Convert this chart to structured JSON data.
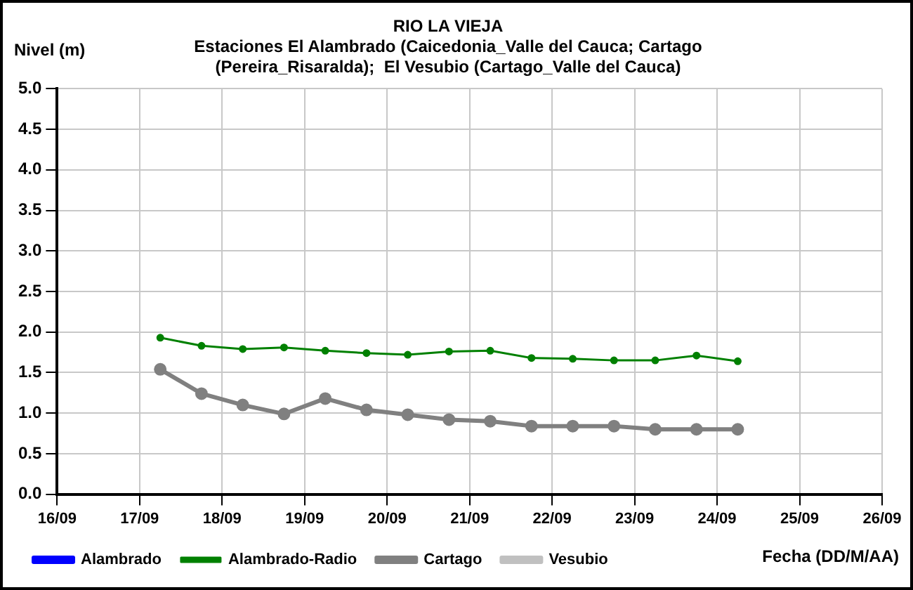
{
  "chart_data": {
    "type": "line",
    "title": "RIO LA VIEJA",
    "subtitle": "Estaciones El Alambrado (Caicedonia_Valle del Cauca; Cartago (Pereira_Risaralda);  El Vesubio (Cartago_Valle del Cauca)",
    "xlabel": "Fecha (DD/M/AA)",
    "ylabel": "Nivel (m)",
    "x": [
      "--09-17T06:00",
      "--09-17T18:00",
      "--09-18T06:00",
      "--09-18T18:00",
      "--09-19T06:00",
      "--09-19T18:00",
      "--09-20T06:00",
      "--09-20T18:00",
      "--09-21T06:00",
      "--09-21T18:00",
      "--09-22T06:00",
      "--09-22T18:00",
      "--09-23T06:00",
      "--09-23T18:00",
      "--09-24T06:00"
    ],
    "series": [
      {
        "name": "Alambrado",
        "color": "#0000ff",
        "marker": "none",
        "values": [
          null,
          null,
          null,
          null,
          null,
          null,
          null,
          null,
          null,
          null,
          null,
          null,
          null,
          null,
          null
        ]
      },
      {
        "name": "Alambrado-Radio",
        "color": "#008000",
        "marker": "circle",
        "values": [
          1.93,
          1.83,
          1.79,
          1.81,
          1.77,
          1.74,
          1.72,
          1.76,
          1.77,
          1.68,
          1.67,
          1.65,
          1.65,
          1.71,
          1.64
        ]
      },
      {
        "name": "Cartago",
        "color": "#808080",
        "marker": "circle",
        "values": [
          1.54,
          1.24,
          1.1,
          0.99,
          1.18,
          1.04,
          0.98,
          0.92,
          0.9,
          0.84,
          0.84,
          0.84,
          0.8,
          0.8,
          0.8
        ]
      },
      {
        "name": "Vesubio",
        "color": "#c0c0c0",
        "marker": "circle",
        "values": [
          null,
          null,
          null,
          null,
          null,
          null,
          null,
          null,
          null,
          null,
          null,
          null,
          null,
          null,
          null
        ]
      }
    ],
    "xlim": [
      "--09-16",
      "--09-26"
    ],
    "xticks": [
      {
        "value": "--09-16",
        "label": "16/09"
      },
      {
        "value": "--09-17",
        "label": "17/09"
      },
      {
        "value": "--09-18",
        "label": "18/09"
      },
      {
        "value": "--09-19",
        "label": "19/09"
      },
      {
        "value": "--09-20",
        "label": "20/09"
      },
      {
        "value": "--09-21",
        "label": "21/09"
      },
      {
        "value": "--09-22",
        "label": "22/09"
      },
      {
        "value": "--09-23",
        "label": "23/09"
      },
      {
        "value": "--09-24",
        "label": "24/09"
      },
      {
        "value": "--09-25",
        "label": "25/09"
      },
      {
        "value": "--09-26",
        "label": "26/09"
      }
    ],
    "ylim": [
      0,
      5
    ],
    "yticks": [
      {
        "value": 0,
        "label": "0.0"
      },
      {
        "value": 0.5,
        "label": "0.5"
      },
      {
        "value": 1,
        "label": "1.0"
      },
      {
        "value": 1.5,
        "label": "1.5"
      },
      {
        "value": 2,
        "label": "2.0"
      },
      {
        "value": 2.5,
        "label": "2.5"
      },
      {
        "value": 3,
        "label": "3.0"
      },
      {
        "value": 3.5,
        "label": "3.5"
      },
      {
        "value": 4,
        "label": "4.0"
      },
      {
        "value": 4.5,
        "label": "4.5"
      },
      {
        "value": 5,
        "label": "5.0"
      }
    ],
    "grid": true,
    "legend": "bottom"
  }
}
